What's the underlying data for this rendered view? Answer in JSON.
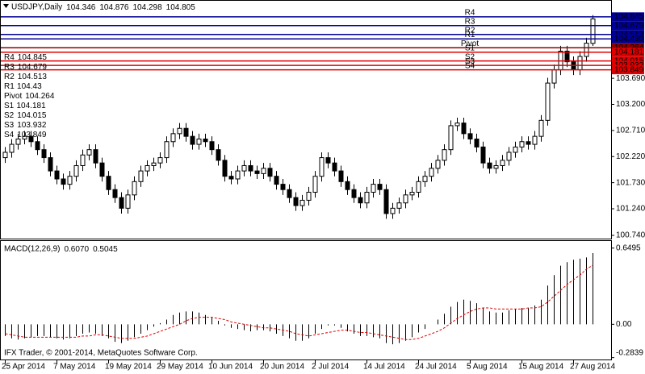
{
  "chart_data": [
    {
      "type": "candlestick",
      "title": "USDJPY,Daily",
      "categories": [
        "25 Apr 2014",
        null,
        null,
        null,
        null,
        null,
        null,
        null,
        "7 May 2014",
        null,
        null,
        null,
        null,
        null,
        null,
        null,
        "19 May 2014",
        null,
        null,
        null,
        null,
        null,
        null,
        null,
        "29 May 2014",
        null,
        null,
        null,
        null,
        null,
        null,
        null,
        "10 Jun 2014",
        null,
        null,
        null,
        null,
        null,
        null,
        null,
        "20 Jun 2014",
        null,
        null,
        null,
        null,
        null,
        null,
        null,
        "2 Jul 2014",
        null,
        null,
        null,
        null,
        null,
        null,
        null,
        "14 Jul 2014",
        null,
        null,
        null,
        null,
        null,
        null,
        null,
        "24 Jul 2014",
        null,
        null,
        null,
        null,
        null,
        null,
        null,
        "5 Aug 2014",
        null,
        null,
        null,
        null,
        null,
        null,
        null,
        "15 Aug 2014",
        null,
        null,
        null,
        null,
        null,
        null,
        null,
        "27 Aug 2014",
        null,
        null,
        null
      ],
      "open": [
        102.2,
        102.3,
        102.45,
        102.55,
        102.6,
        102.5,
        102.35,
        102.2,
        101.95,
        101.8,
        101.7,
        101.85,
        102.05,
        102.25,
        102.35,
        102.1,
        101.85,
        101.6,
        101.45,
        101.25,
        101.5,
        101.75,
        101.95,
        102.05,
        102.1,
        102.2,
        102.5,
        102.65,
        102.75,
        102.6,
        102.45,
        102.55,
        102.5,
        102.35,
        102.15,
        101.85,
        101.8,
        101.95,
        102.05,
        101.95,
        101.9,
        102.0,
        101.85,
        101.7,
        101.6,
        101.45,
        101.3,
        101.4,
        101.55,
        101.85,
        102.2,
        102.1,
        101.95,
        101.75,
        101.6,
        101.45,
        101.35,
        101.55,
        101.7,
        101.6,
        101.15,
        101.25,
        101.35,
        101.5,
        101.55,
        101.75,
        101.85,
        102.0,
        102.15,
        102.35,
        102.8,
        102.85,
        102.65,
        102.55,
        102.4,
        102.1,
        102.0,
        102.05,
        102.15,
        102.3,
        102.4,
        102.5,
        102.45,
        102.6,
        102.9,
        103.6,
        103.85,
        104.2,
        104.0,
        103.85,
        104.1,
        104.346
      ],
      "high": [
        102.4,
        102.55,
        102.65,
        102.7,
        102.7,
        102.6,
        102.45,
        102.3,
        102.05,
        101.9,
        101.95,
        102.15,
        102.35,
        102.45,
        102.45,
        102.2,
        101.95,
        101.7,
        101.55,
        101.6,
        101.85,
        102.05,
        102.15,
        102.2,
        102.3,
        102.6,
        102.75,
        102.85,
        102.85,
        102.7,
        102.65,
        102.65,
        102.6,
        102.45,
        102.25,
        101.95,
        102.05,
        102.15,
        102.15,
        102.05,
        102.1,
        102.1,
        101.95,
        101.8,
        101.7,
        101.55,
        101.5,
        101.65,
        101.95,
        102.3,
        102.3,
        102.2,
        102.05,
        101.85,
        101.7,
        101.55,
        101.65,
        101.8,
        101.8,
        101.7,
        101.35,
        101.45,
        101.6,
        101.65,
        101.85,
        101.95,
        102.1,
        102.25,
        102.45,
        102.9,
        102.95,
        102.95,
        102.75,
        102.65,
        102.5,
        102.2,
        102.15,
        102.25,
        102.4,
        102.5,
        102.6,
        102.6,
        102.7,
        103.0,
        103.7,
        103.95,
        104.3,
        104.3,
        104.1,
        104.2,
        104.45,
        104.876
      ],
      "low": [
        102.1,
        102.2,
        102.35,
        102.45,
        102.4,
        102.25,
        102.1,
        101.85,
        101.7,
        101.6,
        101.6,
        101.75,
        101.95,
        102.15,
        102.0,
        101.75,
        101.5,
        101.35,
        101.15,
        101.15,
        101.4,
        101.65,
        101.85,
        101.95,
        102.0,
        102.1,
        102.4,
        102.55,
        102.5,
        102.35,
        102.35,
        102.4,
        102.25,
        102.05,
        101.75,
        101.7,
        101.7,
        101.85,
        101.85,
        101.8,
        101.8,
        101.75,
        101.6,
        101.5,
        101.35,
        101.2,
        101.2,
        101.3,
        101.45,
        101.75,
        102.0,
        101.85,
        101.65,
        101.5,
        101.35,
        101.25,
        101.25,
        101.45,
        101.5,
        101.05,
        101.05,
        101.15,
        101.25,
        101.4,
        101.45,
        101.65,
        101.75,
        101.9,
        102.05,
        102.25,
        102.7,
        102.55,
        102.45,
        102.3,
        102.0,
        101.9,
        101.9,
        101.95,
        102.05,
        102.2,
        102.3,
        102.35,
        102.35,
        102.5,
        102.8,
        103.5,
        103.75,
        103.9,
        103.75,
        103.75,
        104.0,
        104.298
      ],
      "close": [
        102.3,
        102.45,
        102.55,
        102.6,
        102.5,
        102.35,
        102.2,
        101.95,
        101.8,
        101.7,
        101.85,
        102.05,
        102.25,
        102.35,
        102.1,
        101.85,
        101.6,
        101.45,
        101.25,
        101.5,
        101.75,
        101.95,
        102.05,
        102.1,
        102.2,
        102.5,
        102.65,
        102.75,
        102.6,
        102.45,
        102.55,
        102.5,
        102.35,
        102.15,
        101.85,
        101.8,
        101.95,
        102.05,
        101.95,
        101.9,
        102.0,
        101.85,
        101.7,
        101.6,
        101.45,
        101.3,
        101.4,
        101.55,
        101.85,
        102.2,
        102.1,
        101.95,
        101.75,
        101.6,
        101.45,
        101.35,
        101.55,
        101.7,
        101.6,
        101.15,
        101.25,
        101.35,
        101.5,
        101.55,
        101.75,
        101.85,
        102.0,
        102.15,
        102.35,
        102.8,
        102.85,
        102.65,
        102.55,
        102.4,
        102.1,
        102.0,
        102.05,
        102.15,
        102.3,
        102.4,
        102.5,
        102.45,
        102.6,
        102.9,
        103.6,
        103.85,
        104.2,
        104.0,
        103.85,
        104.1,
        104.35,
        104.805
      ],
      "up_color": "#ffffff",
      "down_color": "#000000",
      "ylim": [
        100.68,
        105.13
      ],
      "yticks": [
        {
          "value": 103.69,
          "label": "103.690"
        },
        {
          "value": 103.2,
          "label": "103.200"
        },
        {
          "value": 102.71,
          "label": "102.710"
        },
        {
          "value": 102.22,
          "label": "102.220"
        },
        {
          "value": 101.73,
          "label": "101.730"
        },
        {
          "value": 101.24,
          "label": "101.240"
        },
        {
          "value": 100.74,
          "label": "100.740"
        }
      ],
      "grid": false,
      "pivots": {
        "names": [
          "R4",
          "R3",
          "R2",
          "R1",
          "Pivot",
          "S1",
          "S2",
          "S3",
          "S4"
        ],
        "values": [
          104.845,
          104.679,
          104.513,
          104.43,
          104.264,
          104.181,
          104.015,
          103.932,
          103.849
        ],
        "value_labels": [
          "104.845",
          "104.679",
          "104.513",
          "104.430",
          "104.264",
          "104.181",
          "104.015",
          "103.932",
          "103.849"
        ],
        "colors": [
          "#000096",
          "#000096",
          "#000096",
          "#000096",
          "#8b0000",
          "#e00000",
          "#e00000",
          "#e00000",
          "#e00000"
        ],
        "label_color": "#d0103a"
      }
    },
    {
      "type": "macd",
      "title": "MACD(12,26,9)",
      "readout": [
        {
          "value": 0.607,
          "label": "0.6070"
        },
        0.5045
      ],
      "ylim": [
        -0.3,
        0.71
      ],
      "yticks": [
        0.6495,
        {
          "value": 0,
          "label": "0.00"
        },
        -0.2839
      ],
      "series": [
        {
          "type": "histogram",
          "color": "#000000",
          "values": [
            -0.1,
            -0.12,
            -0.13,
            -0.12,
            -0.11,
            -0.1,
            -0.1,
            -0.11,
            -0.12,
            -0.13,
            -0.12,
            -0.1,
            -0.08,
            -0.07,
            -0.08,
            -0.1,
            -0.12,
            -0.15,
            -0.16,
            -0.14,
            -0.11,
            -0.08,
            -0.05,
            -0.02,
            0.01,
            0.04,
            0.08,
            0.1,
            0.11,
            0.11,
            0.1,
            0.08,
            0.06,
            0.03,
            -0.01,
            -0.03,
            -0.04,
            -0.05,
            -0.06,
            -0.05,
            -0.05,
            -0.06,
            -0.08,
            -0.1,
            -0.12,
            -0.14,
            -0.14,
            -0.12,
            -0.08,
            -0.04,
            -0.01,
            -0.01,
            -0.03,
            -0.06,
            -0.08,
            -0.1,
            -0.1,
            -0.11,
            -0.12,
            -0.16,
            -0.17,
            -0.16,
            -0.14,
            -0.11,
            -0.07,
            -0.04,
            0.0,
            0.04,
            0.09,
            0.15,
            0.19,
            0.21,
            0.2,
            0.18,
            0.14,
            0.11,
            0.1,
            0.1,
            0.12,
            0.13,
            0.14,
            0.14,
            0.16,
            0.21,
            0.33,
            0.42,
            0.5,
            0.53,
            0.55,
            0.56,
            0.57,
            0.607
          ]
        },
        {
          "type": "line",
          "color": "#e00000",
          "line_style": "dashed",
          "values": [
            -0.08,
            -0.09,
            -0.1,
            -0.11,
            -0.11,
            -0.11,
            -0.11,
            -0.11,
            -0.11,
            -0.11,
            -0.11,
            -0.11,
            -0.1,
            -0.1,
            -0.09,
            -0.09,
            -0.1,
            -0.11,
            -0.12,
            -0.12,
            -0.12,
            -0.11,
            -0.1,
            -0.08,
            -0.06,
            -0.04,
            -0.02,
            0.0,
            0.03,
            0.05,
            0.06,
            0.06,
            0.06,
            0.05,
            0.04,
            0.02,
            0.01,
            0.0,
            -0.01,
            -0.02,
            -0.03,
            -0.03,
            -0.04,
            -0.05,
            -0.06,
            -0.08,
            -0.09,
            -0.1,
            -0.09,
            -0.08,
            -0.07,
            -0.06,
            -0.05,
            -0.05,
            -0.06,
            -0.07,
            -0.07,
            -0.08,
            -0.09,
            -0.1,
            -0.11,
            -0.12,
            -0.13,
            -0.13,
            -0.12,
            -0.1,
            -0.08,
            -0.06,
            -0.03,
            0.01,
            0.05,
            0.08,
            0.11,
            0.13,
            0.14,
            0.14,
            0.13,
            0.13,
            0.13,
            0.13,
            0.13,
            0.14,
            0.14,
            0.15,
            0.19,
            0.24,
            0.29,
            0.34,
            0.38,
            0.42,
            0.47,
            0.5045
          ]
        }
      ]
    }
  ],
  "footer": "IFX Trader, © 2001-2014, MetaQuotes Software Corp."
}
